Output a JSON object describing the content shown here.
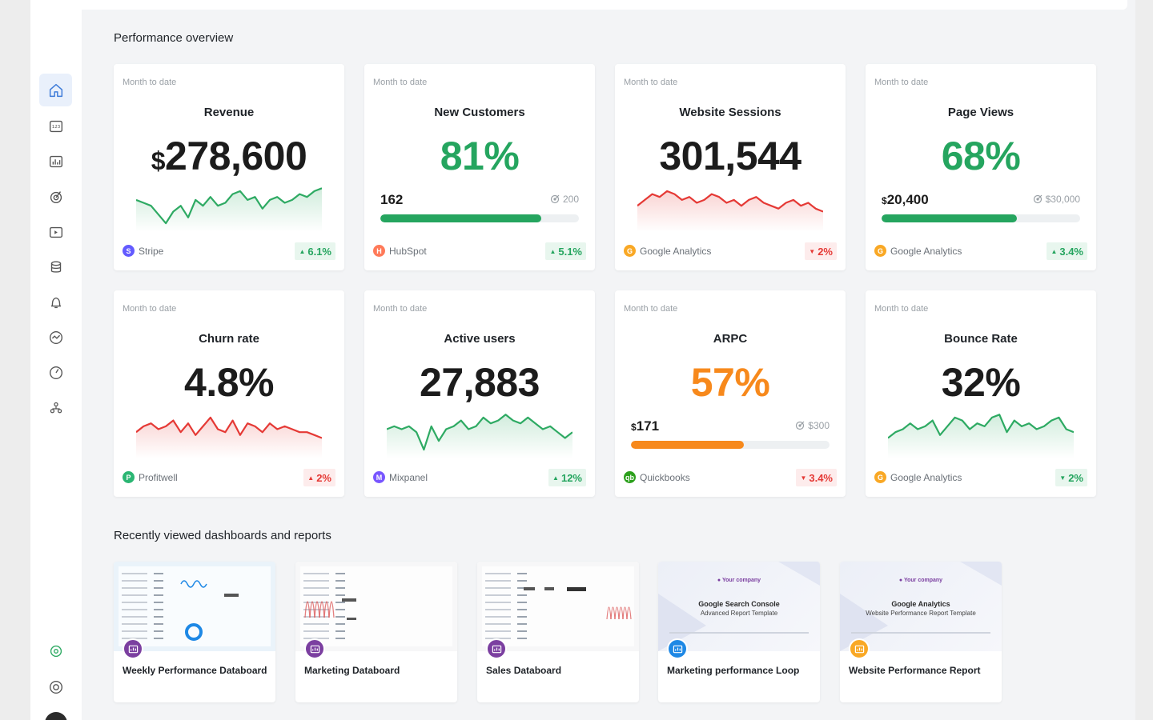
{
  "sections": {
    "performance_title": "Performance overview",
    "recent_title": "Recently viewed dashboards and reports"
  },
  "nav": [
    "home-icon",
    "number-icon",
    "dashboard-icon",
    "goals-icon",
    "reports-icon",
    "data-icon",
    "alerts-icon",
    "metrics-icon",
    "benchmarks-icon",
    "team-icon",
    "integrations-icon",
    "help-icon"
  ],
  "cards": [
    {
      "period": "Month to date",
      "title": "Revenue",
      "currency": "$",
      "value": "278,600",
      "color": "black",
      "source": "Stripe",
      "source_color": "#635bff",
      "source_glyph": "S",
      "delta": "6.1%",
      "trend": "up",
      "spark_color": "#2eaa63",
      "spark": [
        22,
        20,
        18,
        12,
        6,
        14,
        18,
        10,
        22,
        18,
        24,
        18,
        20,
        26,
        28,
        22,
        24,
        16,
        22,
        24,
        20,
        22,
        26,
        24,
        28,
        30
      ]
    },
    {
      "period": "Month to date",
      "title": "New Customers",
      "value": "81%",
      "color": "green",
      "source": "HubSpot",
      "source_color": "#ff7a59",
      "source_glyph": "H",
      "delta": "5.1%",
      "trend": "up",
      "goal": {
        "current": "162",
        "target": "200",
        "progress": 0.81,
        "bar_color": "#25a55f"
      }
    },
    {
      "period": "Month to date",
      "title": "Website Sessions",
      "value": "301,544",
      "color": "black",
      "source": "Google Analytics",
      "source_color": "#f9a825",
      "source_glyph": "G",
      "delta": "2%",
      "trend": "down",
      "spark_color": "#e53935",
      "spark": [
        18,
        22,
        26,
        24,
        28,
        26,
        22,
        24,
        20,
        22,
        26,
        24,
        20,
        22,
        18,
        22,
        24,
        20,
        18,
        16,
        20,
        22,
        18,
        20,
        16,
        14
      ]
    },
    {
      "period": "Month to date",
      "title": "Page Views",
      "value": "68%",
      "color": "green",
      "source": "Google Analytics",
      "source_color": "#f9a825",
      "source_glyph": "G",
      "delta": "3.4%",
      "trend": "up",
      "goal": {
        "currency": "$",
        "current": "20,400",
        "target": "$30,000",
        "progress": 0.68,
        "bar_color": "#25a55f"
      }
    },
    {
      "period": "Month to date",
      "title": "Churn rate",
      "value": "4.8%",
      "color": "black",
      "source": "Profitwell",
      "source_color": "#2bb673",
      "source_glyph": "P",
      "delta": "2%",
      "trend": "up_bad",
      "spark_color": "#e53935",
      "spark": [
        18,
        22,
        24,
        20,
        22,
        26,
        18,
        24,
        16,
        22,
        28,
        20,
        18,
        26,
        16,
        24,
        22,
        18,
        24,
        20,
        22,
        20,
        18,
        18,
        16,
        14
      ]
    },
    {
      "period": "Month to date",
      "title": "Active users",
      "value": "27,883",
      "color": "black",
      "source": "Mixpanel",
      "source_color": "#7856ff",
      "source_glyph": "M",
      "delta": "12%",
      "trend": "up",
      "spark_color": "#2eaa63",
      "spark": [
        20,
        22,
        20,
        22,
        18,
        6,
        22,
        12,
        20,
        22,
        26,
        20,
        22,
        28,
        24,
        26,
        30,
        26,
        24,
        28,
        24,
        20,
        22,
        18,
        14,
        18
      ]
    },
    {
      "period": "Month to date",
      "title": "ARPC",
      "value": "57%",
      "color": "orange",
      "source": "Quickbooks",
      "source_color": "#2ca01c",
      "source_glyph": "qb",
      "delta": "3.4%",
      "trend": "down",
      "goal": {
        "currency": "$",
        "current": "171",
        "target": "$300",
        "progress": 0.57,
        "bar_color": "#f7891c"
      }
    },
    {
      "period": "Month to date",
      "title": "Bounce Rate",
      "value": "32%",
      "color": "black",
      "source": "Google Analytics",
      "source_color": "#f9a825",
      "source_glyph": "G",
      "delta": "2%",
      "trend": "down_good",
      "spark_color": "#2eaa63",
      "spark": [
        14,
        18,
        20,
        24,
        20,
        22,
        26,
        16,
        22,
        28,
        26,
        20,
        24,
        22,
        28,
        30,
        18,
        26,
        22,
        24,
        20,
        22,
        26,
        28,
        20,
        18
      ]
    }
  ],
  "reports": [
    {
      "label": "Weekly Performance Databoard",
      "badge_color": "#7b3fa0",
      "thumb": "databoard-blue"
    },
    {
      "label": "Marketing Databoard",
      "badge_color": "#7b3fa0",
      "thumb": "databoard-red"
    },
    {
      "label": "Sales Databoard",
      "badge_color": "#7b3fa0",
      "thumb": "databoard-table"
    },
    {
      "label": "Marketing performance Loop",
      "badge_color": "#1e88e5",
      "thumb": "template-gsc",
      "company": "Your company",
      "heading": "Google Search Console",
      "subheading": "Advanced Report Template"
    },
    {
      "label": "Website Performance Report",
      "badge_color": "#f9a825",
      "thumb": "template-ga",
      "company": "Your company",
      "heading": "Google Analytics",
      "subheading": "Website Performance Report Template"
    }
  ]
}
